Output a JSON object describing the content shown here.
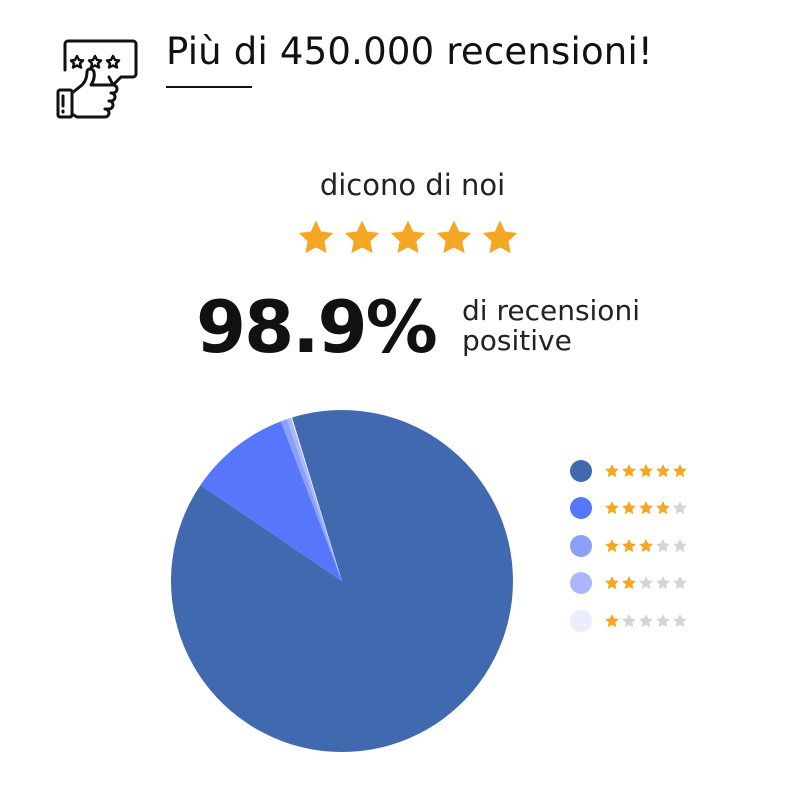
{
  "header": {
    "title": "Più di 450.000 recensioni!",
    "icon": "review-thumbs-up-icon"
  },
  "subtitle": "dicono di noi",
  "top_stars": 5,
  "stat": {
    "value": "98.9%",
    "label_line1": "di recensioni",
    "label_line2": "positive"
  },
  "colors": {
    "star_on": "#f5a623",
    "star_off": "#d4d4d4"
  },
  "chart_data": {
    "type": "pie",
    "categories": [
      "5 stars",
      "4 stars",
      "3 stars",
      "2 stars",
      "1 star"
    ],
    "stars": [
      5,
      4,
      3,
      2,
      1
    ],
    "values": [
      89.2,
      9.7,
      0.6,
      0.4,
      0.1
    ],
    "colors": [
      "#4169b0",
      "#5677fc",
      "#8ba0f8",
      "#aab8fa",
      "#e9edfd"
    ],
    "legend": "right"
  }
}
